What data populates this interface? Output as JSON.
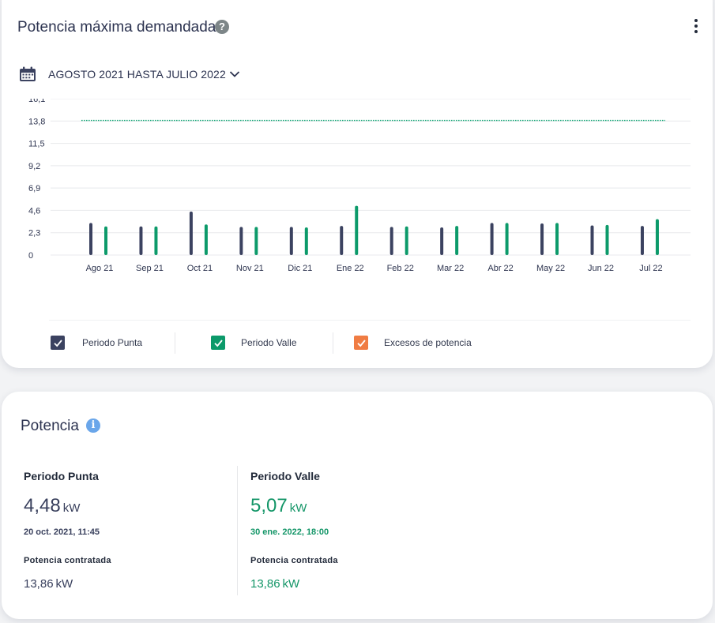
{
  "colors": {
    "punta": "#3b4260",
    "valle": "#0c9a6a",
    "excesos": "#f07c43",
    "contracted_line": "#1aa87a",
    "grid": "#e8e9ec",
    "axis_text": "#2e3550"
  },
  "demand_card": {
    "title": "Potencia máxima demandada",
    "help_icon": "?",
    "menu_icon": "more-vertical-icon",
    "period_icon": "calendar-icon",
    "period_label": "AGOSTO 2021 HASTA JULIO 2022",
    "period_chevron": "chevron-down-icon"
  },
  "chart_data": {
    "type": "bar",
    "categories": [
      "Ago 21",
      "Sep 21",
      "Oct 21",
      "Nov 21",
      "Dic 21",
      "Ene 22",
      "Feb 22",
      "Mar 22",
      "Abr 22",
      "May 22",
      "Jun 22",
      "Jul 22"
    ],
    "y_ticks": [
      "0",
      "2,3",
      "4,6",
      "6,9",
      "9,2",
      "11,5",
      "13,8",
      "16,1"
    ],
    "ylim": [
      0,
      16.1
    ],
    "grid": true,
    "series": [
      {
        "name": "Periodo Punta",
        "values": [
          3.3,
          2.95,
          4.48,
          2.9,
          2.9,
          3.0,
          2.9,
          2.85,
          3.3,
          3.25,
          3.05,
          3.0
        ]
      },
      {
        "name": "Periodo Valle",
        "values": [
          2.95,
          2.95,
          3.15,
          2.9,
          2.85,
          5.07,
          2.95,
          3.0,
          3.3,
          3.3,
          3.1,
          3.7
        ]
      }
    ],
    "reference_line": {
      "value": 13.86,
      "style": "dotted"
    }
  },
  "legend": {
    "items": [
      {
        "label": "Periodo Punta",
        "color": "#3b4260",
        "checked": true
      },
      {
        "label": "Periodo Valle",
        "color": "#0c9a6a",
        "checked": true
      },
      {
        "label": "Excesos de potencia",
        "color": "#f07c43",
        "checked": true
      }
    ]
  },
  "power_card": {
    "title": "Potencia",
    "info_icon": "i",
    "punta": {
      "title": "Periodo Punta",
      "value": "4,48",
      "unit": "kW",
      "timestamp": "20 oct. 2021, 11:45",
      "contract_label": "Potencia contratada",
      "contract_value": "13,86",
      "contract_unit": "kW"
    },
    "valle": {
      "title": "Periodo Valle",
      "value": "5,07",
      "unit": "kW",
      "timestamp": "30 ene. 2022, 18:00",
      "contract_label": "Potencia contratada",
      "contract_value": "13,86",
      "contract_unit": "kW"
    }
  }
}
